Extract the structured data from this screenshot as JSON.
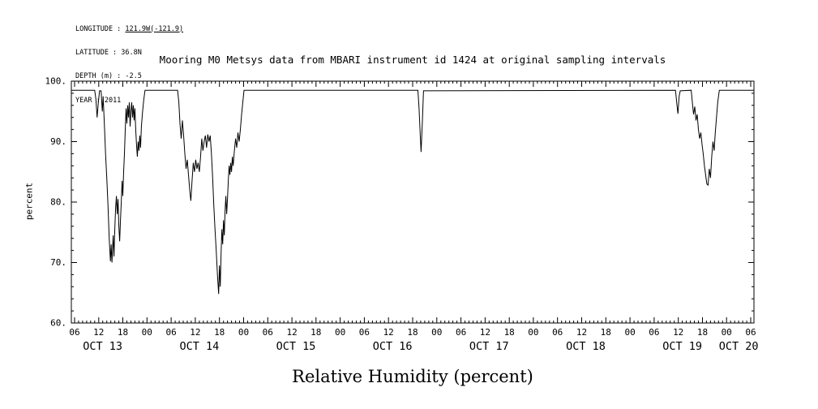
{
  "metadata": {
    "lines": [
      {
        "label": "LONGITUDE : ",
        "value": "121.9W(-121.9)",
        "underlined": true
      },
      {
        "label": "LATITUDE : ",
        "value": "36.8N",
        "underlined": false
      },
      {
        "label": "DEPTH (m) : ",
        "value": "-2.5",
        "underlined": false
      },
      {
        "label": "YEAR : ",
        "value": "2011",
        "underlined": false
      }
    ]
  },
  "title": "Mooring M0 Metsys data from MBARI instrument id 1424 at original sampling intervals",
  "colors": {
    "line": "#000000",
    "axis": "#000000",
    "background": "#ffffff"
  },
  "chart_data": {
    "type": "line",
    "title": "Mooring M0 Metsys data from MBARI instrument id 1424 at original sampling intervals",
    "xlabel": "Relative Humidity (percent)",
    "ylabel": "percent",
    "ylim": [
      60,
      100
    ],
    "xlim_hours": [
      5.2,
      174.8
    ],
    "x_unit": "hours since 2011-10-13 00:00 (ticks every 6 h)",
    "grid": false,
    "legend": false,
    "y_ticks": [
      [
        100,
        "100."
      ],
      [
        90,
        "90."
      ],
      [
        80,
        "80."
      ],
      [
        70,
        "70."
      ],
      [
        60,
        "60."
      ]
    ],
    "x_ticks": [
      [
        6,
        "06"
      ],
      [
        12,
        "12"
      ],
      [
        18,
        "18"
      ],
      [
        24,
        "00"
      ],
      [
        30,
        "06"
      ],
      [
        36,
        "12"
      ],
      [
        42,
        "18"
      ],
      [
        48,
        "00"
      ],
      [
        54,
        "06"
      ],
      [
        60,
        "12"
      ],
      [
        66,
        "18"
      ],
      [
        72,
        "00"
      ],
      [
        78,
        "06"
      ],
      [
        84,
        "12"
      ],
      [
        90,
        "18"
      ],
      [
        96,
        "00"
      ],
      [
        102,
        "06"
      ],
      [
        108,
        "12"
      ],
      [
        114,
        "18"
      ],
      [
        120,
        "00"
      ],
      [
        126,
        "06"
      ],
      [
        132,
        "12"
      ],
      [
        138,
        "18"
      ],
      [
        144,
        "00"
      ],
      [
        150,
        "06"
      ],
      [
        156,
        "12"
      ],
      [
        162,
        "18"
      ],
      [
        168,
        "00"
      ],
      [
        174,
        "06"
      ]
    ],
    "date_labels": [
      [
        13,
        "OCT 13"
      ],
      [
        37,
        "OCT 14"
      ],
      [
        61,
        "OCT 15"
      ],
      [
        85,
        "OCT 16"
      ],
      [
        109,
        "OCT 17"
      ],
      [
        133,
        "OCT 18"
      ],
      [
        157,
        "OCT 19"
      ],
      [
        171,
        "OCT 20"
      ]
    ],
    "series": [
      {
        "name": "relative_humidity_percent",
        "points": [
          [
            5.2,
            98.5
          ],
          [
            11.0,
            98.5
          ],
          [
            11.3,
            97.0
          ],
          [
            11.6,
            94.0
          ],
          [
            11.9,
            96.5
          ],
          [
            12.2,
            98.4
          ],
          [
            12.6,
            98.4
          ],
          [
            12.9,
            95.0
          ],
          [
            13.1,
            97.5
          ],
          [
            13.4,
            93.0
          ],
          [
            13.7,
            88.0
          ],
          [
            14.0,
            84.0
          ],
          [
            14.3,
            79.5
          ],
          [
            14.6,
            74.0
          ],
          [
            14.9,
            70.2
          ],
          [
            15.1,
            73.0
          ],
          [
            15.3,
            70.0
          ],
          [
            15.6,
            74.5
          ],
          [
            15.8,
            71.0
          ],
          [
            16.0,
            75.5
          ],
          [
            16.2,
            79.0
          ],
          [
            16.4,
            81.0
          ],
          [
            16.6,
            78.0
          ],
          [
            16.8,
            80.5
          ],
          [
            17.0,
            76.0
          ],
          [
            17.2,
            73.5
          ],
          [
            17.4,
            77.0
          ],
          [
            17.6,
            80.0
          ],
          [
            17.8,
            83.5
          ],
          [
            18.0,
            81.0
          ],
          [
            18.2,
            85.0
          ],
          [
            18.4,
            88.0
          ],
          [
            18.6,
            92.0
          ],
          [
            18.8,
            95.5
          ],
          [
            19.0,
            93.0
          ],
          [
            19.2,
            96.0
          ],
          [
            19.4,
            94.0
          ],
          [
            19.6,
            96.5
          ],
          [
            19.8,
            92.5
          ],
          [
            20.0,
            95.0
          ],
          [
            20.2,
            96.5
          ],
          [
            20.4,
            94.0
          ],
          [
            20.6,
            96.0
          ],
          [
            20.8,
            93.5
          ],
          [
            21.0,
            95.5
          ],
          [
            21.2,
            92.0
          ],
          [
            21.4,
            89.5
          ],
          [
            21.6,
            87.5
          ],
          [
            21.8,
            90.0
          ],
          [
            22.0,
            88.5
          ],
          [
            22.2,
            91.0
          ],
          [
            22.4,
            89.0
          ],
          [
            22.6,
            92.5
          ],
          [
            22.9,
            95.0
          ],
          [
            23.2,
            97.0
          ],
          [
            23.5,
            98.5
          ],
          [
            31.6,
            98.5
          ],
          [
            31.9,
            96.5
          ],
          [
            32.2,
            93.0
          ],
          [
            32.5,
            90.5
          ],
          [
            32.8,
            93.5
          ],
          [
            33.1,
            91.0
          ],
          [
            33.4,
            88.0
          ],
          [
            33.7,
            85.5
          ],
          [
            34.0,
            87.0
          ],
          [
            34.3,
            84.5
          ],
          [
            34.6,
            82.0
          ],
          [
            34.9,
            80.2
          ],
          [
            35.2,
            83.5
          ],
          [
            35.5,
            86.5
          ],
          [
            35.8,
            85.0
          ],
          [
            36.1,
            87.0
          ],
          [
            36.4,
            85.5
          ],
          [
            36.7,
            86.5
          ],
          [
            37.0,
            85.0
          ],
          [
            37.3,
            87.5
          ],
          [
            37.6,
            90.5
          ],
          [
            37.9,
            88.5
          ],
          [
            38.2,
            90.0
          ],
          [
            38.5,
            91.0
          ],
          [
            38.8,
            89.0
          ],
          [
            39.1,
            91.2
          ],
          [
            39.4,
            90.0
          ],
          [
            39.7,
            91.0
          ],
          [
            40.0,
            88.0
          ],
          [
            40.3,
            84.0
          ],
          [
            40.6,
            79.5
          ],
          [
            40.9,
            75.5
          ],
          [
            41.2,
            72.0
          ],
          [
            41.5,
            68.0
          ],
          [
            41.8,
            64.8
          ],
          [
            42.0,
            69.5
          ],
          [
            42.2,
            66.0
          ],
          [
            42.4,
            71.5
          ],
          [
            42.6,
            75.5
          ],
          [
            42.8,
            73.0
          ],
          [
            43.0,
            77.0
          ],
          [
            43.2,
            74.5
          ],
          [
            43.4,
            78.5
          ],
          [
            43.6,
            81.0
          ],
          [
            43.8,
            78.0
          ],
          [
            44.0,
            80.5
          ],
          [
            44.2,
            83.5
          ],
          [
            44.4,
            86.0
          ],
          [
            44.6,
            84.5
          ],
          [
            44.8,
            86.5
          ],
          [
            45.0,
            85.0
          ],
          [
            45.2,
            87.5
          ],
          [
            45.4,
            86.0
          ],
          [
            45.7,
            88.5
          ],
          [
            46.0,
            90.5
          ],
          [
            46.3,
            89.0
          ],
          [
            46.6,
            91.5
          ],
          [
            46.9,
            90.0
          ],
          [
            47.2,
            92.0
          ],
          [
            47.5,
            94.5
          ],
          [
            47.8,
            96.5
          ],
          [
            48.1,
            98.5
          ],
          [
            91.3,
            98.5
          ],
          [
            91.6,
            95.5
          ],
          [
            91.9,
            91.0
          ],
          [
            92.1,
            88.3
          ],
          [
            92.4,
            93.0
          ],
          [
            92.7,
            98.4
          ],
          [
            155.3,
            98.5
          ],
          [
            155.6,
            96.5
          ],
          [
            155.9,
            94.6
          ],
          [
            156.2,
            97.5
          ],
          [
            156.5,
            98.4
          ],
          [
            159.2,
            98.5
          ],
          [
            159.5,
            96.5
          ],
          [
            159.8,
            94.5
          ],
          [
            160.1,
            95.8
          ],
          [
            160.4,
            93.5
          ],
          [
            160.7,
            94.5
          ],
          [
            161.0,
            92.0
          ],
          [
            161.3,
            90.5
          ],
          [
            161.6,
            91.5
          ],
          [
            161.9,
            89.5
          ],
          [
            162.2,
            88.0
          ],
          [
            162.5,
            86.0
          ],
          [
            162.8,
            84.5
          ],
          [
            163.1,
            83.0
          ],
          [
            163.4,
            82.8
          ],
          [
            163.7,
            85.5
          ],
          [
            164.0,
            84.0
          ],
          [
            164.3,
            87.5
          ],
          [
            164.6,
            90.0
          ],
          [
            164.9,
            88.5
          ],
          [
            165.2,
            91.5
          ],
          [
            165.5,
            94.0
          ],
          [
            165.8,
            96.5
          ],
          [
            166.2,
            98.5
          ],
          [
            174.8,
            98.5
          ]
        ]
      }
    ]
  }
}
